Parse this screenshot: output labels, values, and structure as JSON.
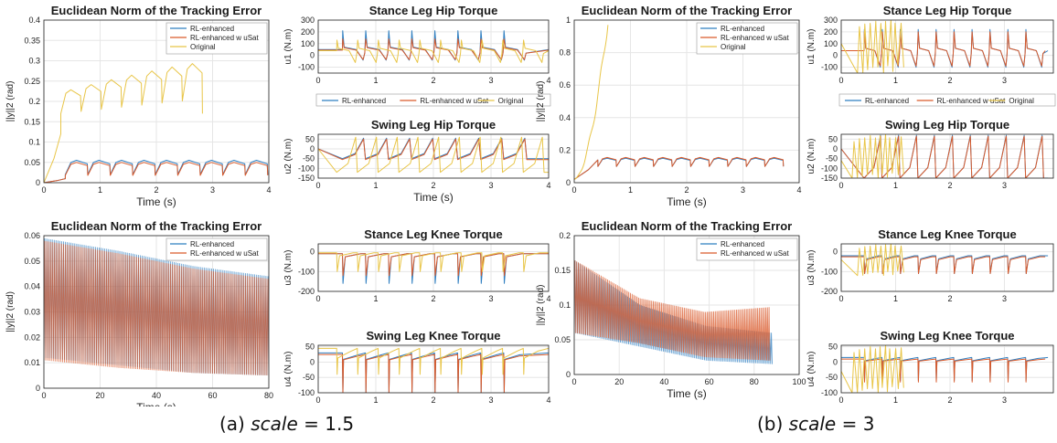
{
  "colors": {
    "rl": "#2f7fc1",
    "sat": "#d95a2b",
    "orig": "#e8c547"
  },
  "captions": [
    {
      "prefix": "(a) ",
      "italic": "scale",
      "suffix": " = 1.5"
    },
    {
      "prefix": "(b) ",
      "italic": "scale",
      "suffix": " = 3"
    }
  ],
  "chart_data": [
    {
      "id": "a-err-top",
      "type": "line",
      "title": "Euclidean Norm of the Tracking Error",
      "xlabel": "Time (s)",
      "ylabel": "||y||2 (rad)",
      "xlim": [
        0,
        4
      ],
      "ylim": [
        0,
        0.4
      ],
      "xticks": [
        0,
        1,
        2,
        3,
        4
      ],
      "yticks": [
        0,
        0.05,
        0.1,
        0.15,
        0.2,
        0.25,
        0.3,
        0.35,
        0.4
      ],
      "ytick_labels": [
        "0",
        "0.05",
        "0.1",
        "0.15",
        "0.2",
        "0.25",
        "0.3",
        "0.35",
        "0.4"
      ],
      "grid": true,
      "legend": "top-right",
      "series": [
        {
          "name": "RL-enhanced",
          "color": "rl",
          "gen": "steps",
          "period": 0.4,
          "start": 0.38,
          "end": 4,
          "base": 0.02,
          "peak": 0.055,
          "pre": [
            0,
            0.01
          ]
        },
        {
          "name": "RL-enhanced w uSat",
          "color": "sat",
          "gen": "steps",
          "period": 0.4,
          "start": 0.38,
          "end": 4,
          "base": 0.018,
          "peak": 0.05,
          "pre": [
            0,
            0.01
          ]
        },
        {
          "name": "Original",
          "color": "orig",
          "gen": "rising",
          "period": 0.36,
          "start": 0.3,
          "end": 3.1,
          "base": 0.17,
          "peak": 0.3,
          "pre": [
            0,
            0.12
          ]
        }
      ]
    },
    {
      "id": "a-u1",
      "type": "line",
      "title": "Stance Leg Hip Torque",
      "xlabel": "",
      "ylabel": "u1 (N.m)",
      "xlim": [
        0,
        4
      ],
      "ylim": [
        -150,
        300
      ],
      "xticks": [
        0,
        1,
        2,
        3,
        4
      ],
      "yticks": [
        -100,
        0,
        100,
        200,
        300
      ],
      "grid": true,
      "legend": "none",
      "series": [
        {
          "name": "RL-enhanced",
          "color": "rl",
          "gen": "spikes",
          "period": 0.4,
          "start": 0.42,
          "end": 4,
          "base": 50,
          "peak": 210,
          "low": -40
        },
        {
          "name": "RL-enhanced w uSat",
          "color": "sat",
          "gen": "spikes",
          "period": 0.4,
          "start": 0.42,
          "end": 4,
          "base": 45,
          "peak": 140,
          "low": -35
        },
        {
          "name": "Original",
          "color": "orig",
          "gen": "spikes",
          "period": 0.36,
          "start": 0.32,
          "end": 4,
          "base": 40,
          "peak": 130,
          "low": -60
        }
      ]
    },
    {
      "id": "a-u2",
      "type": "line",
      "title": "Swing Leg Hip Torque",
      "xlabel": "Time (s)",
      "ylabel": "u2 (N.m)",
      "xlim": [
        0,
        4
      ],
      "ylim": [
        -150,
        75
      ],
      "xticks": [
        0,
        1,
        2,
        3,
        4
      ],
      "yticks": [
        -150,
        -100,
        -50,
        0,
        50
      ],
      "grid": true,
      "legend": "top-overlay",
      "legend_entries": [
        "RL-enhanced",
        "RL-enhanced w uSat",
        "Original"
      ],
      "series": [
        {
          "name": "RL-enhanced",
          "color": "rl",
          "gen": "sawrise",
          "period": 0.4,
          "start": 0.42,
          "end": 4,
          "base": -50,
          "peak": 55
        },
        {
          "name": "RL-enhanced w uSat",
          "color": "sat",
          "gen": "sawrise",
          "period": 0.4,
          "start": 0.42,
          "end": 4,
          "base": -55,
          "peak": 50
        },
        {
          "name": "Original",
          "color": "orig",
          "gen": "sawrise",
          "period": 0.36,
          "start": 0.32,
          "end": 4,
          "base": -120,
          "peak": 60
        }
      ]
    },
    {
      "id": "a-err-bot",
      "type": "area",
      "title": "Euclidean Norm of the Tracking Error",
      "xlabel": "Time (s)",
      "ylabel": "||y||2 (rad)",
      "xlim": [
        0,
        80
      ],
      "ylim": [
        0,
        0.06
      ],
      "xticks": [
        0,
        20,
        40,
        60,
        80
      ],
      "yticks": [
        0,
        0.01,
        0.02,
        0.03,
        0.04,
        0.05,
        0.06
      ],
      "ytick_labels": [
        "0",
        "0.01",
        "0.02",
        "0.03",
        "0.04",
        "0.05",
        "0.06"
      ],
      "grid": true,
      "legend": "top-right",
      "series": [
        {
          "name": "RL-enhanced",
          "color": "rl",
          "gen": "band",
          "end": 80,
          "upper": [
            0.059,
            0.054,
            0.048,
            0.044
          ],
          "lower": [
            0.012,
            0.009,
            0.006,
            0.005
          ]
        },
        {
          "name": "RL-enhanced w uSat",
          "color": "sat",
          "gen": "band",
          "end": 80,
          "upper": [
            0.058,
            0.053,
            0.047,
            0.043
          ],
          "lower": [
            0.011,
            0.008,
            0.006,
            0.005
          ]
        }
      ]
    },
    {
      "id": "a-u3",
      "type": "line",
      "title": "Stance Leg Knee Torque",
      "xlabel": "",
      "ylabel": "u3 (N.m)",
      "xlim": [
        0,
        4
      ],
      "ylim": [
        -200,
        40
      ],
      "xticks": [
        0,
        1,
        2,
        3,
        4
      ],
      "yticks": [
        -200,
        -100,
        0
      ],
      "grid": true,
      "legend": "none",
      "series": [
        {
          "name": "RL-enhanced",
          "color": "rl",
          "gen": "dips",
          "period": 0.4,
          "start": 0.42,
          "end": 4,
          "base": -10,
          "peak": -160
        },
        {
          "name": "RL-enhanced w uSat",
          "color": "sat",
          "gen": "dips",
          "period": 0.4,
          "start": 0.42,
          "end": 4,
          "base": -10,
          "peak": -120
        },
        {
          "name": "Original",
          "color": "orig",
          "gen": "dips",
          "period": 0.36,
          "start": 0.32,
          "end": 4,
          "base": -5,
          "peak": -100
        }
      ]
    },
    {
      "id": "a-u4",
      "type": "line",
      "title": "Swing Leg Knee Torque",
      "xlabel": "Time (s)",
      "ylabel": "u4 (N.m)",
      "xlim": [
        0,
        4
      ],
      "ylim": [
        -100,
        55
      ],
      "xticks": [
        0,
        1,
        2,
        3,
        4
      ],
      "yticks": [
        -100,
        -50,
        0,
        50
      ],
      "grid": true,
      "legend": "none",
      "series": [
        {
          "name": "RL-enhanced",
          "color": "rl",
          "gen": "drops",
          "period": 0.4,
          "start": 0.42,
          "end": 4,
          "base": 30,
          "peak": -100
        },
        {
          "name": "RL-enhanced w uSat",
          "color": "sat",
          "gen": "drops",
          "period": 0.4,
          "start": 0.42,
          "end": 4,
          "base": 25,
          "peak": -100
        },
        {
          "name": "Original",
          "color": "orig",
          "gen": "drops",
          "period": 0.36,
          "start": 0.32,
          "end": 4,
          "base": 45,
          "peak": -40
        }
      ]
    },
    {
      "id": "b-err-top",
      "type": "line",
      "title": "Euclidean Norm of the Tracking Error",
      "xlabel": "Time (s)",
      "ylabel": "||y||2 (rad)",
      "xlim": [
        0,
        4
      ],
      "ylim": [
        0,
        1
      ],
      "xticks": [
        0,
        1,
        2,
        3,
        4
      ],
      "yticks": [
        0,
        0.2,
        0.4,
        0.6,
        0.8,
        1
      ],
      "ytick_labels": [
        "0",
        "0.2",
        "0.4",
        "0.6",
        "0.8",
        "1"
      ],
      "grid": true,
      "legend": "top-right",
      "series": [
        {
          "name": "RL-enhanced",
          "color": "rl",
          "gen": "steps",
          "period": 0.33,
          "start": 0.42,
          "end": 3.8,
          "base": 0.1,
          "peak": 0.15,
          "pre": [
            0.02,
            0.14
          ]
        },
        {
          "name": "RL-enhanced w uSat",
          "color": "sat",
          "gen": "steps",
          "period": 0.33,
          "start": 0.42,
          "end": 3.75,
          "base": 0.1,
          "peak": 0.155,
          "pre": [
            0.02,
            0.14
          ]
        },
        {
          "name": "Original",
          "color": "orig",
          "gen": "diverge",
          "start": 0,
          "end": 0.6,
          "base": 0.02,
          "peak": 1.0
        }
      ]
    },
    {
      "id": "b-u1",
      "type": "line",
      "title": "Stance Leg Hip Torque",
      "xlabel": "",
      "ylabel": "u1 (N.m)",
      "xlim": [
        0,
        3.9
      ],
      "ylim": [
        -150,
        300
      ],
      "xticks": [
        0,
        1,
        2,
        3
      ],
      "yticks": [
        -100,
        0,
        100,
        200,
        300
      ],
      "grid": true,
      "legend": "none",
      "series": [
        {
          "name": "RL-enhanced",
          "color": "rl",
          "gen": "spikes",
          "period": 0.33,
          "start": 0.42,
          "end": 3.8,
          "base": 40,
          "peak": 220,
          "low": -100
        },
        {
          "name": "RL-enhanced w uSat",
          "color": "sat",
          "gen": "spikes",
          "period": 0.33,
          "start": 0.42,
          "end": 3.75,
          "base": 40,
          "peak": 200,
          "low": -90
        },
        {
          "name": "Original",
          "color": "orig",
          "gen": "chaos",
          "start": 0.3,
          "end": 1.2,
          "base": 100,
          "peak": 300,
          "low": -150
        }
      ]
    },
    {
      "id": "b-u2",
      "type": "line",
      "title": "Swing Leg Hip Torque",
      "xlabel": "",
      "ylabel": "u2 (N.m)",
      "xlim": [
        0,
        3.9
      ],
      "ylim": [
        -150,
        75
      ],
      "xticks": [
        0,
        1,
        2,
        3
      ],
      "yticks": [
        -150,
        -100,
        -50,
        0,
        50
      ],
      "grid": true,
      "legend": "top-overlay",
      "legend_entries": [
        "RL-enhanced",
        "RL-enhanced w uSat",
        "Original"
      ],
      "series": [
        {
          "name": "RL-enhanced",
          "color": "rl",
          "gen": "sawrise",
          "period": 0.33,
          "start": 0.42,
          "end": 3.8,
          "base": -150,
          "peak": 70
        },
        {
          "name": "RL-enhanced w uSat",
          "color": "sat",
          "gen": "sawrise",
          "period": 0.33,
          "start": 0.42,
          "end": 3.75,
          "base": -150,
          "peak": 65
        },
        {
          "name": "Original",
          "color": "orig",
          "gen": "chaos",
          "start": 0.2,
          "end": 1.2,
          "base": -60,
          "peak": 75,
          "low": -150
        }
      ]
    },
    {
      "id": "b-err-bot",
      "type": "area",
      "title": "Euclidean Norm of the Tracking Error",
      "xlabel": "Time (s)",
      "ylabel": "||y||2 (rad)",
      "xlim": [
        0,
        100
      ],
      "ylim": [
        0,
        0.2
      ],
      "xticks": [
        0,
        20,
        40,
        60,
        80,
        100
      ],
      "yticks": [
        0,
        0.05,
        0.1,
        0.15,
        0.2
      ],
      "ytick_labels": [
        "0",
        "0.05",
        "0.1",
        "0.15",
        "0.2"
      ],
      "grid": true,
      "legend": "top-right",
      "series": [
        {
          "name": "RL-enhanced",
          "color": "rl",
          "gen": "band",
          "end": 88,
          "upper": [
            0.165,
            0.1,
            0.07,
            0.06
          ],
          "lower": [
            0.06,
            0.04,
            0.02,
            0.015
          ]
        },
        {
          "name": "RL-enhanced w uSat",
          "color": "sat",
          "gen": "band",
          "end": 87,
          "upper": [
            0.165,
            0.11,
            0.09,
            0.097
          ],
          "lower": [
            0.06,
            0.045,
            0.025,
            0.02
          ]
        }
      ]
    },
    {
      "id": "b-u3",
      "type": "line",
      "title": "Stance Leg Knee Torque",
      "xlabel": "",
      "ylabel": "u3 (N.m)",
      "xlim": [
        0,
        3.9
      ],
      "ylim": [
        -200,
        40
      ],
      "xticks": [
        0,
        1,
        2,
        3
      ],
      "yticks": [
        -200,
        -100,
        0
      ],
      "grid": true,
      "legend": "none",
      "series": [
        {
          "name": "RL-enhanced",
          "color": "rl",
          "gen": "dips",
          "period": 0.33,
          "start": 0.42,
          "end": 3.8,
          "base": -20,
          "peak": -110
        },
        {
          "name": "RL-enhanced w uSat",
          "color": "sat",
          "gen": "dips",
          "period": 0.33,
          "start": 0.42,
          "end": 3.75,
          "base": -25,
          "peak": -110
        },
        {
          "name": "Original",
          "color": "orig",
          "gen": "chaos",
          "start": 0.3,
          "end": 1.2,
          "base": -40,
          "peak": 40,
          "low": -120
        }
      ]
    },
    {
      "id": "b-u4",
      "type": "line",
      "title": "Swing Leg Knee Torque",
      "xlabel": "Time (s)",
      "ylabel": "u4 (N.m)",
      "xlim": [
        0,
        3.9
      ],
      "ylim": [
        -100,
        55
      ],
      "xticks": [
        0,
        1,
        2,
        3
      ],
      "yticks": [
        -100,
        -50,
        0,
        50
      ],
      "grid": true,
      "legend": "none",
      "series": [
        {
          "name": "RL-enhanced",
          "color": "rl",
          "gen": "drops",
          "period": 0.33,
          "start": 0.42,
          "end": 3.8,
          "base": 15,
          "peak": -60
        },
        {
          "name": "RL-enhanced w uSat",
          "color": "sat",
          "gen": "drops",
          "period": 0.33,
          "start": 0.42,
          "end": 3.75,
          "base": 10,
          "peak": -65
        },
        {
          "name": "Original",
          "color": "orig",
          "gen": "chaos",
          "start": 0.2,
          "end": 1.2,
          "base": -30,
          "peak": 55,
          "low": -100
        }
      ]
    }
  ]
}
